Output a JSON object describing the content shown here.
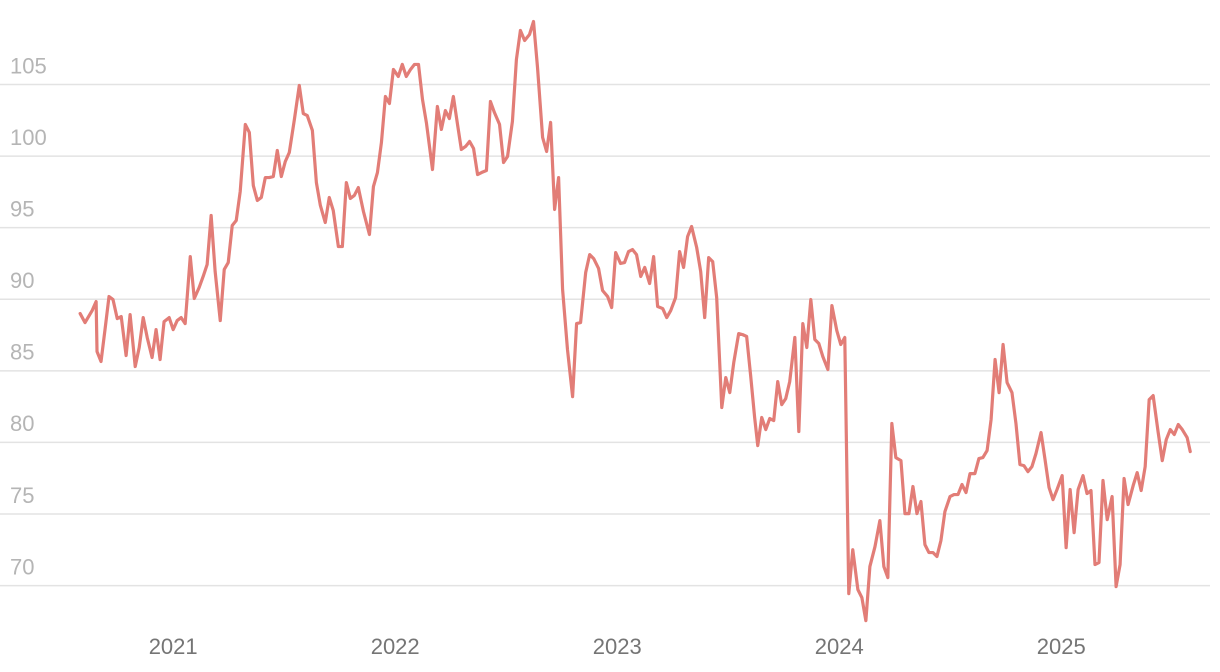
{
  "chart_data": {
    "type": "line",
    "color": "#e27d77",
    "grid": true,
    "xlim": [
      2020.22,
      2025.67
    ],
    "xticks": [
      2021,
      2022,
      2023,
      2024,
      2025
    ],
    "ylim": [
      66.9,
      110.9
    ],
    "yticks": [
      70,
      75,
      80,
      85,
      90,
      95,
      100,
      105
    ],
    "x": [
      2020.581,
      2020.603,
      2020.635,
      2020.653,
      2020.657,
      2020.675,
      2020.693,
      2020.711,
      2020.729,
      2020.748,
      2020.766,
      2020.788,
      2020.806,
      2020.829,
      2020.847,
      2020.865,
      2020.883,
      2020.905,
      2020.923,
      2020.941,
      2020.959,
      2020.982,
      2021.0,
      2021.018,
      2021.036,
      2021.054,
      2021.077,
      2021.095,
      2021.117,
      2021.135,
      2021.153,
      2021.171,
      2021.189,
      2021.212,
      2021.23,
      2021.248,
      2021.266,
      2021.284,
      2021.302,
      2021.325,
      2021.343,
      2021.361,
      2021.379,
      2021.397,
      2021.415,
      2021.433,
      2021.451,
      2021.469,
      2021.487,
      2021.505,
      2021.523,
      2021.546,
      2021.568,
      2021.586,
      2021.604,
      2021.627,
      2021.645,
      2021.663,
      2021.685,
      2021.703,
      2021.721,
      2021.744,
      2021.762,
      2021.78,
      2021.798,
      2021.816,
      2021.834,
      2021.857,
      2021.884,
      2021.902,
      2021.92,
      2021.938,
      2021.956,
      2021.974,
      2021.992,
      2022.014,
      2022.032,
      2022.05,
      2022.069,
      2022.087,
      2022.105,
      2022.123,
      2022.141,
      2022.168,
      2022.19,
      2022.208,
      2022.226,
      2022.244,
      2022.262,
      2022.28,
      2022.298,
      2022.317,
      2022.335,
      2022.353,
      2022.371,
      2022.389,
      2022.411,
      2022.429,
      2022.447,
      2022.47,
      2022.488,
      2022.506,
      2022.528,
      2022.546,
      2022.564,
      2022.583,
      2022.605,
      2022.623,
      2022.641,
      2022.664,
      2022.682,
      2022.7,
      2022.718,
      2022.736,
      2022.754,
      2022.776,
      2022.799,
      2022.817,
      2022.835,
      2022.858,
      2022.876,
      2022.894,
      2022.916,
      2022.934,
      2022.957,
      2022.975,
      2022.993,
      2023.015,
      2023.033,
      2023.051,
      2023.069,
      2023.087,
      2023.106,
      2023.124,
      2023.146,
      2023.164,
      2023.182,
      2023.205,
      2023.223,
      2023.241,
      2023.263,
      2023.281,
      2023.299,
      2023.317,
      2023.335,
      2023.358,
      2023.376,
      2023.394,
      2023.412,
      2023.43,
      2023.448,
      2023.471,
      2023.489,
      2023.507,
      2023.525,
      2023.547,
      2023.565,
      2023.583,
      2023.601,
      2023.619,
      2023.633,
      2023.651,
      2023.669,
      2023.687,
      2023.705,
      2023.723,
      2023.741,
      2023.759,
      2023.777,
      2023.8,
      2023.818,
      2023.836,
      2023.854,
      2023.872,
      2023.89,
      2023.908,
      2023.926,
      2023.949,
      2023.967,
      2023.989,
      2024.007,
      2024.025,
      2024.043,
      2024.061,
      2024.084,
      2024.102,
      2024.12,
      2024.138,
      2024.161,
      2024.183,
      2024.201,
      2024.219,
      2024.237,
      2024.255,
      2024.278,
      2024.296,
      2024.314,
      2024.332,
      2024.35,
      2024.368,
      2024.386,
      2024.404,
      2024.422,
      2024.44,
      2024.458,
      2024.476,
      2024.499,
      2024.517,
      2024.535,
      2024.553,
      2024.571,
      2024.589,
      2024.611,
      2024.629,
      2024.647,
      2024.666,
      2024.684,
      2024.702,
      2024.72,
      2024.738,
      2024.756,
      2024.778,
      2024.796,
      2024.814,
      2024.832,
      2024.85,
      2024.868,
      2024.886,
      2024.909,
      2024.927,
      2024.945,
      2024.963,
      2024.981,
      2025.004,
      2025.022,
      2025.04,
      2025.058,
      2025.076,
      2025.098,
      2025.116,
      2025.134,
      2025.152,
      2025.17,
      2025.188,
      2025.207,
      2025.229,
      2025.247,
      2025.265,
      2025.283,
      2025.301,
      2025.324,
      2025.342,
      2025.36,
      2025.378,
      2025.396,
      2025.414,
      2025.436,
      2025.455,
      2025.473,
      2025.491,
      2025.509,
      2025.527,
      2025.545,
      2025.567,
      2025.581
    ],
    "values": [
      89.0,
      88.37,
      89.21,
      89.84,
      86.35,
      85.65,
      87.88,
      90.19,
      89.98,
      88.65,
      88.79,
      86.07,
      88.93,
      85.3,
      86.63,
      88.72,
      87.33,
      85.93,
      87.88,
      85.79,
      88.44,
      88.72,
      87.88,
      88.51,
      88.72,
      88.3,
      92.98,
      90.05,
      90.82,
      91.59,
      92.43,
      95.85,
      91.94,
      88.51,
      92.08,
      92.56,
      95.15,
      95.5,
      97.53,
      102.21,
      101.65,
      97.94,
      96.9,
      97.11,
      98.5,
      98.5,
      98.57,
      100.39,
      98.57,
      99.62,
      100.25,
      102.56,
      104.93,
      102.97,
      102.83,
      101.79,
      98.15,
      96.55,
      95.36,
      97.11,
      96.2,
      93.68,
      93.68,
      98.15,
      97.04,
      97.25,
      97.8,
      96.13,
      94.52,
      97.87,
      98.85,
      100.95,
      104.16,
      103.67,
      106.05,
      105.56,
      106.4,
      105.56,
      106.05,
      106.4,
      106.4,
      103.95,
      102.28,
      99.06,
      103.46,
      101.86,
      103.18,
      102.62,
      104.16,
      102.28,
      100.46,
      100.67,
      101.02,
      100.53,
      98.71,
      98.85,
      98.99,
      103.81,
      103.04,
      102.21,
      99.55,
      99.97,
      102.42,
      106.75,
      108.77,
      108.07,
      108.49,
      109.4,
      106.19,
      101.3,
      100.32,
      102.35,
      96.27,
      98.5,
      90.68,
      86.49,
      83.2,
      88.3,
      88.37,
      91.87,
      93.12,
      92.84,
      92.15,
      90.61,
      90.19,
      89.42,
      93.26,
      92.5,
      92.56,
      93.33,
      93.47,
      93.12,
      91.59,
      92.22,
      91.1,
      92.98,
      89.49,
      89.35,
      88.72,
      89.21,
      90.12,
      93.33,
      92.22,
      94.38,
      95.08,
      93.61,
      91.94,
      88.72,
      92.91,
      92.63,
      90.12,
      82.44,
      84.53,
      83.48,
      85.58,
      87.6,
      87.53,
      87.4,
      84.67,
      81.74,
      79.78,
      81.74,
      80.9,
      81.67,
      81.53,
      84.25,
      82.64,
      83.06,
      84.25,
      87.33,
      80.76,
      88.3,
      86.63,
      89.98,
      87.19,
      86.91,
      86.0,
      85.09,
      89.56,
      87.81,
      86.84,
      87.33,
      69.44,
      72.51,
      69.72,
      69.16,
      67.55,
      71.33,
      72.72,
      74.54,
      71.33,
      70.56,
      81.32,
      78.94,
      78.73,
      75.03,
      75.03,
      76.92,
      75.03,
      75.87,
      72.86,
      72.31,
      72.31,
      72.03,
      73.14,
      75.17,
      76.22,
      76.36,
      76.36,
      77.06,
      76.5,
      77.82,
      77.82,
      78.87,
      78.94,
      79.43,
      81.6,
      85.79,
      83.48,
      86.84,
      84.18,
      83.48,
      81.32,
      78.45,
      78.38,
      77.96,
      78.31,
      79.22,
      80.69,
      78.8,
      76.85,
      76.01,
      76.71,
      77.68,
      72.65,
      76.71,
      73.7,
      76.71,
      77.68,
      76.43,
      76.64,
      71.47,
      71.61,
      77.34,
      74.61,
      76.22,
      69.93,
      71.47,
      77.48,
      75.66,
      76.99,
      77.89,
      76.64,
      78.31,
      82.99,
      83.27,
      80.76,
      78.73,
      80.2,
      80.9,
      80.55,
      81.25,
      80.9,
      80.34,
      79.36
    ]
  }
}
